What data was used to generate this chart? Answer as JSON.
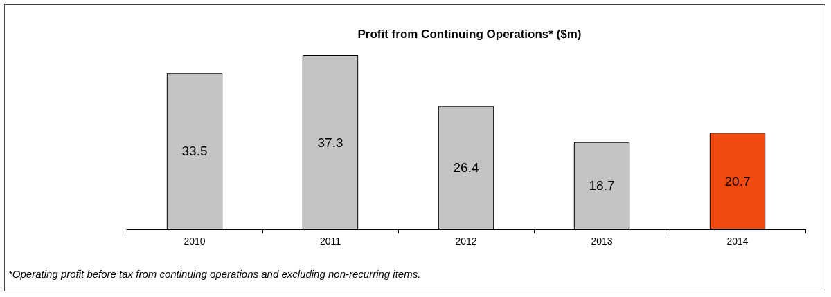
{
  "chart_data": {
    "type": "bar",
    "title": "Profit from Continuing Operations* ($m)",
    "categories": [
      "2010",
      "2011",
      "2012",
      "2013",
      "2014"
    ],
    "values": [
      33.5,
      37.3,
      26.4,
      18.7,
      20.7
    ],
    "colors": [
      "#c4c4c4",
      "#c4c4c4",
      "#c4c4c4",
      "#c4c4c4",
      "#f04a10"
    ],
    "data_labels": true,
    "annotations": [
      "*Operating profit before tax from continuing operations and excluding non-recurring items."
    ]
  }
}
